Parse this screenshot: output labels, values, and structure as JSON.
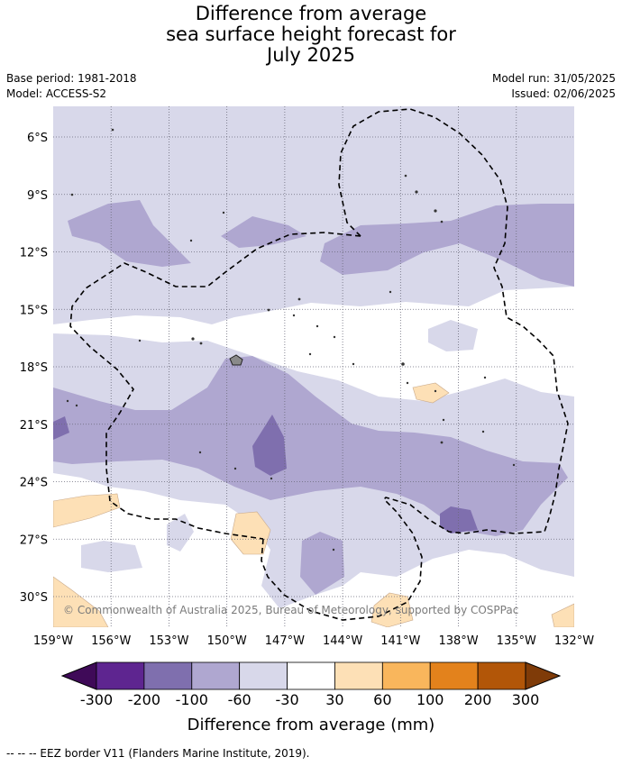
{
  "header": {
    "title_lines": [
      "Difference from average",
      "sea surface height forecast for",
      "July 2025"
    ],
    "base_period": "Base period: 1981-2018",
    "model": "Model: ACCESS-S2",
    "model_run": "Model run: 31/05/2025",
    "issued": "Issued: 02/06/2025"
  },
  "map": {
    "y_ticks": [
      "6°S",
      "9°S",
      "12°S",
      "15°S",
      "18°S",
      "21°S",
      "24°S",
      "27°S",
      "30°S"
    ],
    "x_ticks": [
      "159°W",
      "156°W",
      "153°W",
      "150°W",
      "147°W",
      "144°W",
      "141°W",
      "138°W",
      "135°W",
      "132°W"
    ],
    "credit": "© Commonwealth of Australia 2025, Bureau of Meteorology, supported by COSPPac",
    "gridlines": true,
    "eez_line_style": "dashed"
  },
  "legend": {
    "title": "Difference from average (mm)",
    "tick_labels": [
      "-300",
      "-200",
      "-100",
      "-60",
      "-30",
      "30",
      "60",
      "100",
      "200",
      "300"
    ],
    "colors": [
      "#3f0a58",
      "#5e2590",
      "#7f6fae",
      "#afa7d0",
      "#d8d8ea",
      "#ffffff",
      "#fde0b6",
      "#f9b65c",
      "#e3821c",
      "#b25608",
      "#7f3b08"
    ]
  },
  "footer": {
    "text": "--  --  -- EEZ border V11 (Flanders Marine Institute, 2019)."
  }
}
